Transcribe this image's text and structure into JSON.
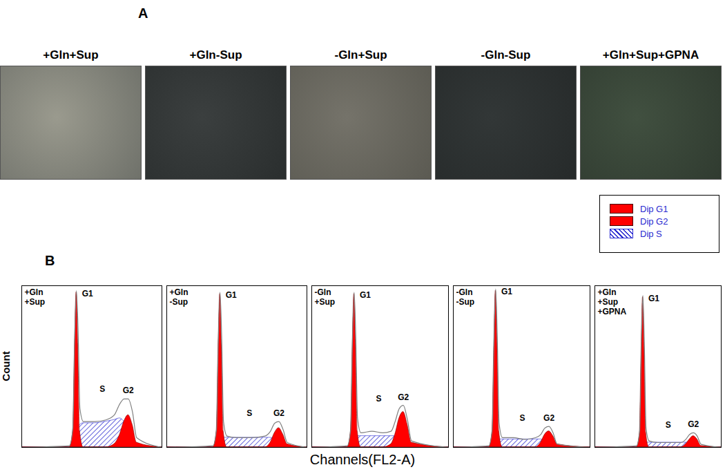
{
  "figure": {
    "panel_labels": [
      "A",
      "B"
    ],
    "photo_labels": [
      "+Gln+Sup",
      "+Gln-Sup",
      "-Gln+Sup",
      "-Gln-Sup",
      "+Gln+Sup+GPNA"
    ],
    "ylabel": "Count",
    "xlabel": "Channels(FL2-A)"
  },
  "chart_data": [
    {
      "type": "area",
      "title": [
        "+Gln",
        "+Sup"
      ],
      "color": "#808080",
      "xlim": [
        0,
        100
      ],
      "ylim": [
        0,
        100
      ],
      "tick_labels": false,
      "x": [
        0,
        34,
        36.5,
        37.8,
        39,
        40.2,
        41.5,
        44,
        52,
        60,
        66,
        70,
        73,
        76,
        79,
        82,
        100
      ],
      "values": [
        0,
        1,
        12,
        68,
        97,
        72,
        24,
        16,
        16,
        17,
        20,
        27,
        30,
        30,
        22,
        6,
        0
      ],
      "series": [
        {
          "name": "Dip G1",
          "label": "G1",
          "color": "#ff0000",
          "line_style": "solid",
          "values": [
            0,
            0,
            10,
            62,
            96,
            62,
            10,
            0,
            0,
            0,
            0,
            0,
            0,
            0,
            0,
            0,
            0
          ]
        },
        {
          "name": "Dip G2",
          "label": "G2",
          "color": "#ff0000",
          "line_style": "solid",
          "values": [
            0,
            0,
            0,
            0,
            0,
            0,
            0,
            0,
            0,
            0,
            2,
            8,
            16,
            20,
            14,
            3,
            0
          ]
        },
        {
          "name": "Dip S",
          "label": "S",
          "color": "#2a2ad0",
          "line_style": "hatched",
          "values": [
            0,
            0,
            0,
            4,
            8,
            12,
            14,
            15,
            15,
            16,
            17,
            18,
            16,
            12,
            6,
            0,
            0
          ]
        }
      ]
    },
    {
      "type": "area",
      "title": [
        "+Gln",
        "-Sup"
      ],
      "color": "#808080",
      "xlim": [
        0,
        100
      ],
      "ylim": [
        0,
        100
      ],
      "tick_labels": false,
      "x": [
        0,
        33,
        35.5,
        36.8,
        38,
        39.2,
        40.5,
        43,
        50,
        60,
        70,
        74,
        77,
        80,
        83,
        86,
        100
      ],
      "values": [
        0,
        1,
        11,
        65,
        96,
        68,
        16,
        7,
        6,
        6,
        7,
        10,
        15,
        16,
        11,
        3,
        0
      ],
      "series": [
        {
          "name": "Dip G1",
          "label": "G1",
          "color": "#ff0000",
          "line_style": "solid",
          "values": [
            0,
            0,
            10,
            62,
            95,
            62,
            10,
            0,
            0,
            0,
            0,
            0,
            0,
            0,
            0,
            0,
            0
          ]
        },
        {
          "name": "Dip G2",
          "label": "G2",
          "color": "#ff0000",
          "line_style": "solid",
          "values": [
            0,
            0,
            0,
            0,
            0,
            0,
            0,
            0,
            0,
            0,
            0,
            3,
            9,
            12,
            8,
            2,
            0
          ]
        },
        {
          "name": "Dip S",
          "label": "S",
          "color": "#2a2ad0",
          "line_style": "hatched",
          "values": [
            0,
            0,
            0,
            2,
            4,
            5,
            6,
            6,
            6,
            6,
            6,
            6,
            5,
            4,
            2,
            0,
            0
          ]
        }
      ]
    },
    {
      "type": "area",
      "title": [
        "-Gln",
        "+Sup"
      ],
      "color": "#808080",
      "xlim": [
        0,
        100
      ],
      "ylim": [
        0,
        100
      ],
      "tick_labels": false,
      "x": [
        0,
        26,
        28.5,
        29.8,
        31,
        32.2,
        33.5,
        36,
        44,
        52,
        58,
        61,
        64,
        67,
        70,
        73,
        100
      ],
      "values": [
        0,
        1,
        11,
        66,
        96,
        68,
        18,
        9,
        10,
        9,
        10,
        16,
        24,
        26,
        17,
        4,
        0
      ],
      "series": [
        {
          "name": "Dip G1",
          "label": "G1",
          "color": "#ff0000",
          "line_style": "solid",
          "values": [
            0,
            0,
            10,
            62,
            95,
            62,
            10,
            0,
            0,
            0,
            0,
            0,
            0,
            0,
            0,
            0,
            0
          ]
        },
        {
          "name": "Dip G2",
          "label": "G2",
          "color": "#ff0000",
          "line_style": "solid",
          "values": [
            0,
            0,
            0,
            0,
            0,
            0,
            0,
            0,
            0,
            0,
            2,
            8,
            18,
            22,
            14,
            3,
            0
          ]
        },
        {
          "name": "Dip S",
          "label": "S",
          "color": "#2a2ad0",
          "line_style": "hatched",
          "values": [
            0,
            0,
            0,
            3,
            5,
            6,
            7,
            7,
            7,
            7,
            7,
            7,
            6,
            4,
            2,
            0,
            0
          ]
        }
      ]
    },
    {
      "type": "area",
      "title": [
        "-Gln",
        "-Sup"
      ],
      "color": "#808080",
      "xlim": [
        0,
        100
      ],
      "ylim": [
        0,
        100
      ],
      "tick_labels": false,
      "x": [
        0,
        26,
        28.5,
        29.8,
        31,
        32.2,
        33.5,
        36,
        44,
        52,
        60,
        64,
        67,
        70,
        73,
        76,
        100
      ],
      "values": [
        0,
        1,
        11,
        66,
        98,
        67,
        15,
        6,
        6,
        5,
        6,
        8,
        12,
        13,
        9,
        2,
        0
      ],
      "series": [
        {
          "name": "Dip G1",
          "label": "G1",
          "color": "#ff0000",
          "line_style": "solid",
          "values": [
            0,
            0,
            10,
            63,
            97,
            63,
            10,
            0,
            0,
            0,
            0,
            0,
            0,
            0,
            0,
            0,
            0
          ]
        },
        {
          "name": "Dip G2",
          "label": "G2",
          "color": "#ff0000",
          "line_style": "solid",
          "values": [
            0,
            0,
            0,
            0,
            0,
            0,
            0,
            0,
            0,
            0,
            0,
            3,
            8,
            10,
            7,
            2,
            0
          ]
        },
        {
          "name": "Dip S",
          "label": "S",
          "color": "#2a2ad0",
          "line_style": "hatched",
          "values": [
            0,
            0,
            0,
            2,
            3,
            4,
            5,
            5,
            5,
            5,
            5,
            5,
            4,
            3,
            2,
            0,
            0
          ]
        }
      ]
    },
    {
      "type": "area",
      "title": [
        "+Gln",
        "+Sup",
        "+GPNA"
      ],
      "color": "#808080",
      "xlim": [
        0,
        100
      ],
      "ylim": [
        0,
        100
      ],
      "tick_labels": false,
      "x": [
        0,
        33,
        35.5,
        36.8,
        38,
        39.2,
        40.5,
        43,
        50,
        60,
        68,
        72,
        75,
        78,
        81,
        84,
        100
      ],
      "values": [
        0,
        1,
        10,
        62,
        94,
        63,
        12,
        4,
        3,
        3,
        3,
        5,
        8,
        9,
        7,
        2,
        0
      ],
      "series": [
        {
          "name": "Dip G1",
          "label": "G1",
          "color": "#ff0000",
          "line_style": "solid",
          "values": [
            0,
            0,
            9,
            60,
            93,
            60,
            9,
            0,
            0,
            0,
            0,
            0,
            0,
            0,
            0,
            0,
            0
          ]
        },
        {
          "name": "Dip G2",
          "label": "G2",
          "color": "#ff0000",
          "line_style": "solid",
          "values": [
            0,
            0,
            0,
            0,
            0,
            0,
            0,
            0,
            0,
            0,
            0,
            2,
            5,
            7,
            5,
            1,
            0
          ]
        },
        {
          "name": "Dip S",
          "label": "S",
          "color": "#2a2ad0",
          "line_style": "hatched",
          "values": [
            0,
            0,
            0,
            1,
            2,
            3,
            3,
            3,
            3,
            3,
            3,
            3,
            3,
            2,
            1,
            0,
            0
          ]
        }
      ]
    }
  ]
}
